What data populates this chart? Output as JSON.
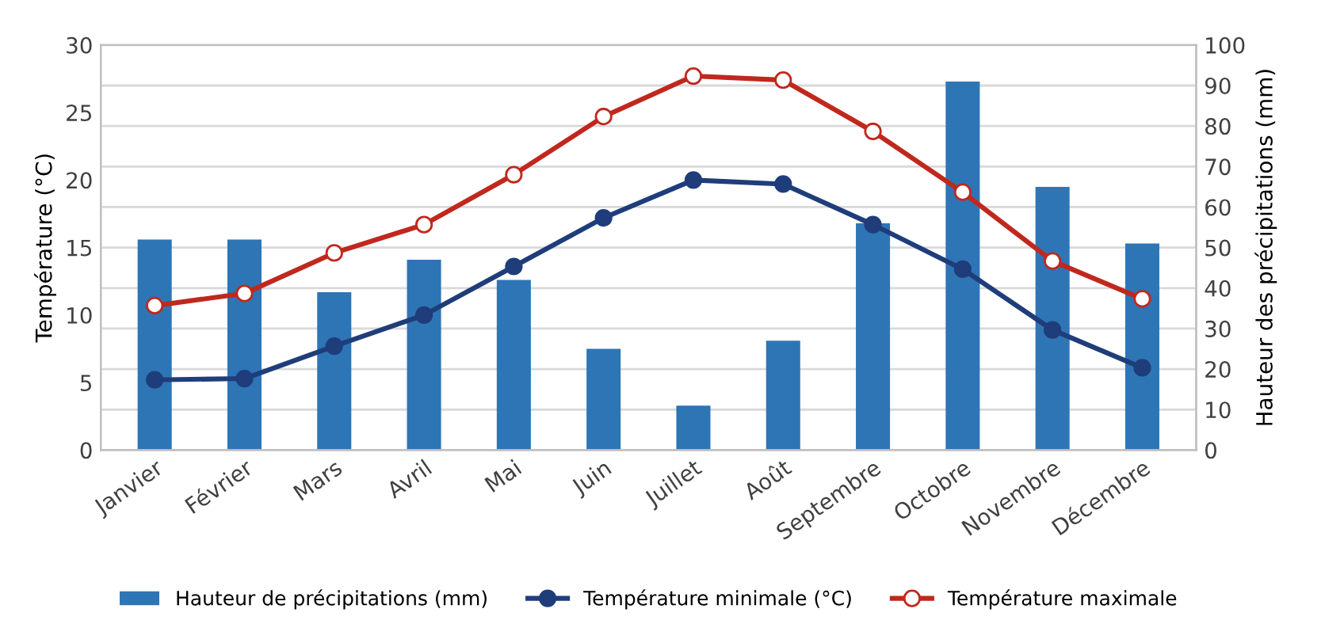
{
  "chart_data": {
    "type": "line",
    "ylabel": "Température (°C)",
    "y2label": "Hauteur des précipitations (mm)",
    "categories": [
      "Janvier",
      "Février",
      "Mars",
      "Avril",
      "Mai",
      "Juin",
      "Juillet",
      "Août",
      "Septembre",
      "Octobre",
      "Novembre",
      "Décembre"
    ],
    "series": [
      {
        "name": "Hauteur de précipitations (mm)",
        "type": "bar",
        "axis": "y2",
        "color": "#2e75b6",
        "values": [
          52,
          52,
          39,
          47,
          42,
          25,
          11,
          27,
          56,
          91,
          65,
          51
        ]
      },
      {
        "name": "Température minimale (°C)",
        "color": "#1f3d7a",
        "marker": "circle",
        "values": [
          5.2,
          5.3,
          7.7,
          10,
          13.6,
          17.2,
          20,
          19.7,
          16.7,
          13.4,
          8.9,
          6.1
        ]
      },
      {
        "name": "Température maximale",
        "color": "#c0281e",
        "marker": "circle",
        "values": [
          10.7,
          11.6,
          14.6,
          16.7,
          20.4,
          24.7,
          27.7,
          27.4,
          23.6,
          19.1,
          14,
          11.2
        ]
      }
    ],
    "ylim": [
      0,
      30
    ],
    "yticks": [
      0,
      5,
      10,
      15,
      20,
      25,
      30
    ],
    "y2lim": [
      0,
      100
    ],
    "y2ticks": [
      0,
      10,
      20,
      30,
      40,
      50,
      60,
      70,
      80,
      90,
      100
    ],
    "grid": "y",
    "legend": "bottom"
  }
}
